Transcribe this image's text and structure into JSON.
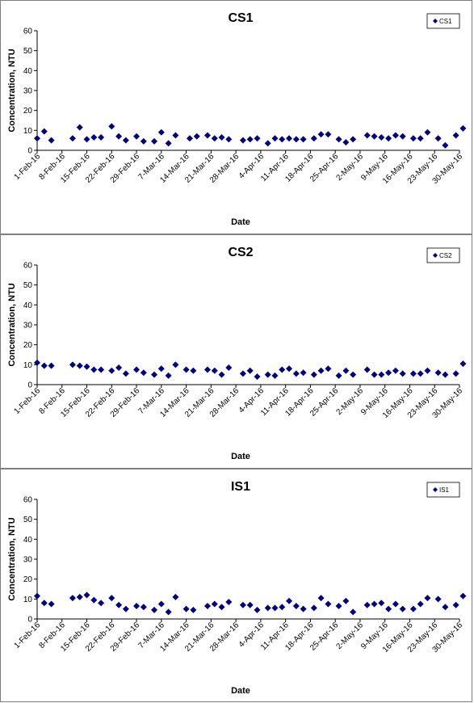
{
  "chart_data": [
    {
      "type": "scatter",
      "title": "CS1",
      "xlabel": "Date",
      "ylabel": "Concentration, NTU",
      "ylim": [
        0,
        60
      ],
      "yticks": [
        0,
        10,
        20,
        30,
        40,
        50,
        60
      ],
      "xlim": [
        "2016-02-01",
        "2016-05-30"
      ],
      "xtick_labels": [
        "1-Feb-16",
        "8-Feb-16",
        "15-Feb-16",
        "22-Feb-16",
        "29-Feb-16",
        "7-Mar-16",
        "14-Mar-16",
        "21-Mar-16",
        "28-Mar-16",
        "4-Apr-16",
        "11-Apr-16",
        "18-Apr-16",
        "25-Apr-16",
        "2-May-16",
        "9-May-16",
        "16-May-16",
        "23-May-16",
        "30-May-16"
      ],
      "grid": false,
      "legend_position": "top-right",
      "marker_color": "#000080",
      "series": [
        {
          "name": "CS1",
          "points": [
            {
              "x": "2016-02-01",
              "y": 6
            },
            {
              "x": "2016-02-03",
              "y": 9.5
            },
            {
              "x": "2016-02-05",
              "y": 5
            },
            {
              "x": "2016-02-11",
              "y": 6
            },
            {
              "x": "2016-02-13",
              "y": 11.5
            },
            {
              "x": "2016-02-15",
              "y": 5.5
            },
            {
              "x": "2016-02-17",
              "y": 6.5
            },
            {
              "x": "2016-02-19",
              "y": 6.5
            },
            {
              "x": "2016-02-22",
              "y": 12
            },
            {
              "x": "2016-02-24",
              "y": 7
            },
            {
              "x": "2016-02-26",
              "y": 5
            },
            {
              "x": "2016-02-29",
              "y": 7
            },
            {
              "x": "2016-03-02",
              "y": 4.5
            },
            {
              "x": "2016-03-05",
              "y": 4.5
            },
            {
              "x": "2016-03-07",
              "y": 9
            },
            {
              "x": "2016-03-09",
              "y": 3.5
            },
            {
              "x": "2016-03-11",
              "y": 7.5
            },
            {
              "x": "2016-03-15",
              "y": 6
            },
            {
              "x": "2016-03-17",
              "y": 7
            },
            {
              "x": "2016-03-20",
              "y": 7.5
            },
            {
              "x": "2016-03-22",
              "y": 6
            },
            {
              "x": "2016-03-24",
              "y": 6.5
            },
            {
              "x": "2016-03-26",
              "y": 5.5
            },
            {
              "x": "2016-03-30",
              "y": 5
            },
            {
              "x": "2016-04-01",
              "y": 5.5
            },
            {
              "x": "2016-04-03",
              "y": 6
            },
            {
              "x": "2016-04-06",
              "y": 3.5
            },
            {
              "x": "2016-04-08",
              "y": 6
            },
            {
              "x": "2016-04-10",
              "y": 5.5
            },
            {
              "x": "2016-04-12",
              "y": 6
            },
            {
              "x": "2016-04-14",
              "y": 5.5
            },
            {
              "x": "2016-04-16",
              "y": 5.5
            },
            {
              "x": "2016-04-19",
              "y": 6
            },
            {
              "x": "2016-04-21",
              "y": 8
            },
            {
              "x": "2016-04-23",
              "y": 8
            },
            {
              "x": "2016-04-26",
              "y": 5.5
            },
            {
              "x": "2016-04-28",
              "y": 4
            },
            {
              "x": "2016-04-30",
              "y": 5.5
            },
            {
              "x": "2016-05-04",
              "y": 7.5
            },
            {
              "x": "2016-05-06",
              "y": 7
            },
            {
              "x": "2016-05-08",
              "y": 6.5
            },
            {
              "x": "2016-05-10",
              "y": 6
            },
            {
              "x": "2016-05-12",
              "y": 7.5
            },
            {
              "x": "2016-05-14",
              "y": 7
            },
            {
              "x": "2016-05-17",
              "y": 6
            },
            {
              "x": "2016-05-19",
              "y": 6
            },
            {
              "x": "2016-05-21",
              "y": 9
            },
            {
              "x": "2016-05-24",
              "y": 6
            },
            {
              "x": "2016-05-26",
              "y": 2.5
            },
            {
              "x": "2016-05-29",
              "y": 7.5
            },
            {
              "x": "2016-05-31",
              "y": 11
            }
          ]
        }
      ]
    },
    {
      "type": "scatter",
      "title": "CS2",
      "xlabel": "Date",
      "ylabel": "Concentration, NTU",
      "ylim": [
        0,
        60
      ],
      "yticks": [
        0,
        10,
        20,
        30,
        40,
        50,
        60
      ],
      "xlim": [
        "2016-02-01",
        "2016-05-30"
      ],
      "xtick_labels": [
        "1-Feb-16",
        "8-Feb-16",
        "15-Feb-16",
        "22-Feb-16",
        "29-Feb-16",
        "7-Mar-16",
        "14-Mar-16",
        "21-Mar-16",
        "28-Mar-16",
        "4-Apr-16",
        "11-Apr-16",
        "18-Apr-16",
        "25-Apr-16",
        "2-May-16",
        "9-May-16",
        "16-May-16",
        "23-May-16",
        "30-May-16"
      ],
      "grid": false,
      "legend_position": "top-right",
      "marker_color": "#000080",
      "series": [
        {
          "name": "CS2",
          "points": [
            {
              "x": "2016-02-01",
              "y": 11
            },
            {
              "x": "2016-02-03",
              "y": 9.5
            },
            {
              "x": "2016-02-05",
              "y": 9.5
            },
            {
              "x": "2016-02-11",
              "y": 10
            },
            {
              "x": "2016-02-13",
              "y": 9.5
            },
            {
              "x": "2016-02-15",
              "y": 9
            },
            {
              "x": "2016-02-17",
              "y": 7.5
            },
            {
              "x": "2016-02-19",
              "y": 7.5
            },
            {
              "x": "2016-02-22",
              "y": 7
            },
            {
              "x": "2016-02-24",
              "y": 8.5
            },
            {
              "x": "2016-02-26",
              "y": 5.5
            },
            {
              "x": "2016-02-29",
              "y": 7.5
            },
            {
              "x": "2016-03-02",
              "y": 6
            },
            {
              "x": "2016-03-05",
              "y": 5
            },
            {
              "x": "2016-03-07",
              "y": 8
            },
            {
              "x": "2016-03-09",
              "y": 4.5
            },
            {
              "x": "2016-03-11",
              "y": 10
            },
            {
              "x": "2016-03-14",
              "y": 7.5
            },
            {
              "x": "2016-03-16",
              "y": 7
            },
            {
              "x": "2016-03-20",
              "y": 7.5
            },
            {
              "x": "2016-03-22",
              "y": 7
            },
            {
              "x": "2016-03-24",
              "y": 5
            },
            {
              "x": "2016-03-26",
              "y": 8.5
            },
            {
              "x": "2016-03-30",
              "y": 5.5
            },
            {
              "x": "2016-04-01",
              "y": 7
            },
            {
              "x": "2016-04-03",
              "y": 4
            },
            {
              "x": "2016-04-06",
              "y": 5
            },
            {
              "x": "2016-04-08",
              "y": 4.5
            },
            {
              "x": "2016-04-10",
              "y": 7.5
            },
            {
              "x": "2016-04-12",
              "y": 8
            },
            {
              "x": "2016-04-14",
              "y": 5.5
            },
            {
              "x": "2016-04-16",
              "y": 6
            },
            {
              "x": "2016-04-19",
              "y": 5
            },
            {
              "x": "2016-04-21",
              "y": 7
            },
            {
              "x": "2016-04-23",
              "y": 8
            },
            {
              "x": "2016-04-26",
              "y": 4.5
            },
            {
              "x": "2016-04-28",
              "y": 7
            },
            {
              "x": "2016-04-30",
              "y": 5
            },
            {
              "x": "2016-05-04",
              "y": 7.5
            },
            {
              "x": "2016-05-06",
              "y": 5
            },
            {
              "x": "2016-05-08",
              "y": 5
            },
            {
              "x": "2016-05-10",
              "y": 6
            },
            {
              "x": "2016-05-12",
              "y": 7
            },
            {
              "x": "2016-05-14",
              "y": 5.5
            },
            {
              "x": "2016-05-17",
              "y": 5.5
            },
            {
              "x": "2016-05-19",
              "y": 5.5
            },
            {
              "x": "2016-05-21",
              "y": 7
            },
            {
              "x": "2016-05-24",
              "y": 6
            },
            {
              "x": "2016-05-26",
              "y": 5
            },
            {
              "x": "2016-05-29",
              "y": 5.5
            },
            {
              "x": "2016-05-31",
              "y": 10.5
            }
          ]
        }
      ]
    },
    {
      "type": "scatter",
      "title": "IS1",
      "xlabel": "Date",
      "ylabel": "Concentration, NTU",
      "ylim": [
        0,
        60
      ],
      "yticks": [
        0,
        10,
        20,
        30,
        40,
        50,
        60
      ],
      "xlim": [
        "2016-02-01",
        "2016-05-30"
      ],
      "xtick_labels": [
        "1-Feb-16",
        "8-Feb-16",
        "15-Feb-16",
        "22-Feb-16",
        "29-Feb-16",
        "7-Mar-16",
        "14-Mar-16",
        "21-Mar-16",
        "28-Mar-16",
        "4-Apr-16",
        "11-Apr-16",
        "18-Apr-16",
        "25-Apr-16",
        "2-May-16",
        "9-May-16",
        "16-May-16",
        "23-May-16",
        "30-May-16"
      ],
      "grid": false,
      "legend_position": "top-right",
      "marker_color": "#000080",
      "series": [
        {
          "name": "IS1",
          "points": [
            {
              "x": "2016-02-01",
              "y": 11.5
            },
            {
              "x": "2016-02-03",
              "y": 8
            },
            {
              "x": "2016-02-05",
              "y": 7.5
            },
            {
              "x": "2016-02-11",
              "y": 10.5
            },
            {
              "x": "2016-02-13",
              "y": 11
            },
            {
              "x": "2016-02-15",
              "y": 12
            },
            {
              "x": "2016-02-17",
              "y": 9.5
            },
            {
              "x": "2016-02-19",
              "y": 8
            },
            {
              "x": "2016-02-22",
              "y": 10.5
            },
            {
              "x": "2016-02-24",
              "y": 7
            },
            {
              "x": "2016-02-26",
              "y": 5
            },
            {
              "x": "2016-02-29",
              "y": 6.5
            },
            {
              "x": "2016-03-02",
              "y": 6
            },
            {
              "x": "2016-03-05",
              "y": 4.5
            },
            {
              "x": "2016-03-07",
              "y": 7.5
            },
            {
              "x": "2016-03-09",
              "y": 3.5
            },
            {
              "x": "2016-03-11",
              "y": 11
            },
            {
              "x": "2016-03-14",
              "y": 5
            },
            {
              "x": "2016-03-16",
              "y": 4.5
            },
            {
              "x": "2016-03-20",
              "y": 6.5
            },
            {
              "x": "2016-03-22",
              "y": 7.5
            },
            {
              "x": "2016-03-24",
              "y": 6
            },
            {
              "x": "2016-03-26",
              "y": 8.5
            },
            {
              "x": "2016-03-30",
              "y": 7
            },
            {
              "x": "2016-04-01",
              "y": 7
            },
            {
              "x": "2016-04-03",
              "y": 4.5
            },
            {
              "x": "2016-04-06",
              "y": 5.5
            },
            {
              "x": "2016-04-08",
              "y": 5.5
            },
            {
              "x": "2016-04-10",
              "y": 6
            },
            {
              "x": "2016-04-12",
              "y": 9
            },
            {
              "x": "2016-04-14",
              "y": 6.5
            },
            {
              "x": "2016-04-16",
              "y": 5
            },
            {
              "x": "2016-04-19",
              "y": 5.5
            },
            {
              "x": "2016-04-21",
              "y": 10.5
            },
            {
              "x": "2016-04-23",
              "y": 7.5
            },
            {
              "x": "2016-04-26",
              "y": 6.5
            },
            {
              "x": "2016-04-28",
              "y": 9
            },
            {
              "x": "2016-04-30",
              "y": 3.5
            },
            {
              "x": "2016-05-04",
              "y": 7
            },
            {
              "x": "2016-05-06",
              "y": 7.5
            },
            {
              "x": "2016-05-08",
              "y": 8
            },
            {
              "x": "2016-05-10",
              "y": 5
            },
            {
              "x": "2016-05-12",
              "y": 7.5
            },
            {
              "x": "2016-05-14",
              "y": 5
            },
            {
              "x": "2016-05-17",
              "y": 5
            },
            {
              "x": "2016-05-19",
              "y": 7.5
            },
            {
              "x": "2016-05-21",
              "y": 10.5
            },
            {
              "x": "2016-05-24",
              "y": 10
            },
            {
              "x": "2016-05-26",
              "y": 6
            },
            {
              "x": "2016-05-29",
              "y": 7
            },
            {
              "x": "2016-05-31",
              "y": 11.5
            }
          ]
        }
      ]
    }
  ]
}
